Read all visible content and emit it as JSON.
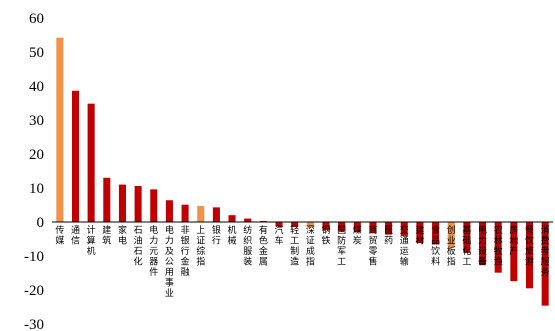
{
  "chart_data": {
    "type": "bar",
    "title": "",
    "xlabel": "",
    "ylabel": "",
    "ylim": [
      -30,
      60
    ],
    "yticks": [
      60,
      50,
      40,
      30,
      20,
      10,
      0,
      -10,
      -20,
      -30
    ],
    "grid": false,
    "colors": {
      "highlight": "#f0924a",
      "default": "#c00000"
    },
    "categories": [
      "传媒",
      "通信",
      "计算机",
      "建筑",
      "家电",
      "石油石化",
      "电力元器件",
      "电力及公用事业",
      "非银行金融",
      "上证综指",
      "银行",
      "机械",
      "纺织服装",
      "有色金属",
      "汽车",
      "轻工制造",
      "深证成指",
      "钢铁",
      "国防军工",
      "煤炭",
      "商贸零售",
      "医药",
      "交通运输",
      "建材",
      "食品饮料",
      "创业板指",
      "基础化工",
      "电力设备",
      "农林牧渔",
      "房地产",
      "餐饮旅游",
      "消费者服务"
    ],
    "values": [
      54.2,
      38.6,
      34.8,
      13.0,
      11.0,
      10.6,
      9.6,
      6.4,
      5.1,
      4.7,
      4.3,
      2.0,
      1.0,
      0.3,
      -1.3,
      -1.5,
      -1.7,
      -2.4,
      -2.7,
      -3.0,
      -3.3,
      -3.7,
      -4.1,
      -6.2,
      -6.6,
      -7.6,
      -9.1,
      -12.5,
      -14.9,
      -17.4,
      -19.5,
      -24.6
    ],
    "highlight": [
      true,
      false,
      false,
      false,
      false,
      false,
      false,
      false,
      false,
      true,
      false,
      false,
      false,
      false,
      false,
      false,
      true,
      false,
      false,
      false,
      false,
      false,
      false,
      false,
      false,
      true,
      false,
      false,
      false,
      false,
      false,
      false
    ]
  }
}
